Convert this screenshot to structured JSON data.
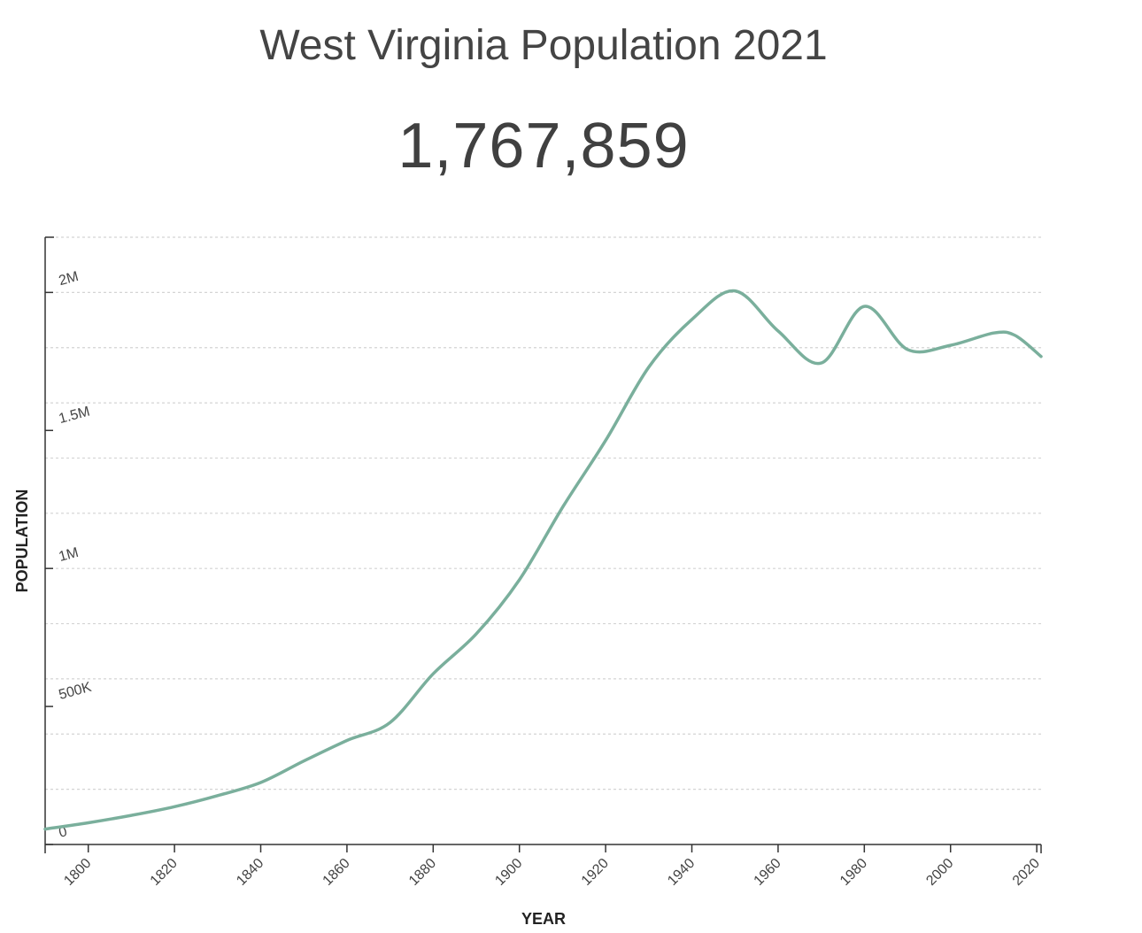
{
  "chart_data": {
    "type": "line",
    "title": "West Virginia Population 2021",
    "headline_value": "1,767,859",
    "xlabel": "YEAR",
    "ylabel": "POPULATION",
    "x_ticks": [
      "1800",
      "1820",
      "1840",
      "1860",
      "1880",
      "1900",
      "1920",
      "1940",
      "1960",
      "1980",
      "2000",
      "2020"
    ],
    "y_ticks": [
      {
        "value": 0,
        "label": "0"
      },
      {
        "value": 500000,
        "label": "500K"
      },
      {
        "value": 1000000,
        "label": "1M"
      },
      {
        "value": 1500000,
        "label": "1.5M"
      },
      {
        "value": 2000000,
        "label": "2M"
      }
    ],
    "xlim": [
      1790,
      2021
    ],
    "ylim": [
      0,
      2200000
    ],
    "grid": true,
    "line_color": "#7aaf9c",
    "series": [
      {
        "x": [
          1790,
          1800,
          1810,
          1820,
          1830,
          1840,
          1850,
          1860,
          1870,
          1880,
          1890,
          1900,
          1910,
          1920,
          1930,
          1940,
          1950,
          1960,
          1970,
          1980,
          1990,
          2000,
          2010,
          2015,
          2021
        ],
        "values": [
          55873,
          78592,
          105469,
          136808,
          176924,
          224537,
          302313,
          376688,
          442014,
          618457,
          762794,
          958800,
          1221119,
          1463701,
          1729205,
          1901974,
          2005552,
          1860421,
          1744237,
          1949644,
          1793477,
          1808344,
          1852994,
          1844128,
          1767859
        ]
      }
    ]
  }
}
